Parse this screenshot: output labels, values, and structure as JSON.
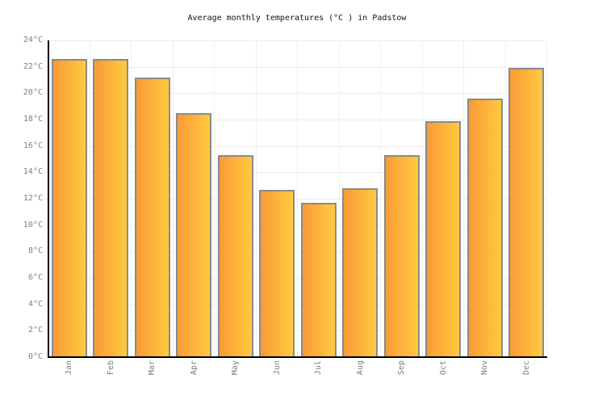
{
  "chart_data": {
    "type": "bar",
    "title": "Average monthly temperatures (°C ) in Padstow",
    "categories": [
      "Jan",
      "Feb",
      "Mar",
      "Apr",
      "May",
      "Jun",
      "Jul",
      "Aug",
      "Sep",
      "Oct",
      "Nov",
      "Dec"
    ],
    "values": [
      22.6,
      22.6,
      21.2,
      18.5,
      15.3,
      12.7,
      11.7,
      12.8,
      15.3,
      17.9,
      19.6,
      21.9
    ],
    "unit": "°C",
    "ylim": [
      0,
      24
    ],
    "ytick_step": 2,
    "xlabel": "",
    "ylabel": "",
    "grid": true,
    "legend_position": "none",
    "colors": {
      "background": "#FFFFFF",
      "bar_gradient_left": "#FA9A36",
      "bar_gradient_right": "#FFCA40",
      "bar_border": "#8A8A8A",
      "gridline": "#ECECEC",
      "axis": "#000000",
      "tick_label": "#7E7E7E",
      "title": "#111111"
    }
  }
}
